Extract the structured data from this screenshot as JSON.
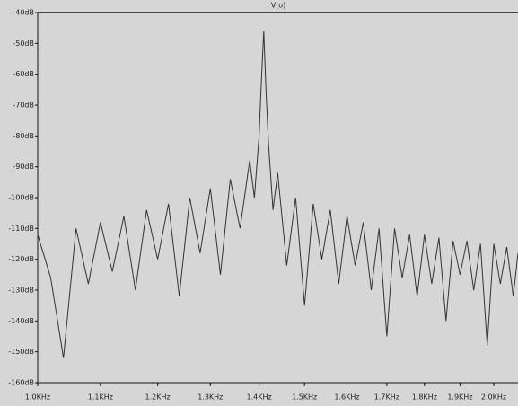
{
  "chart_data": {
    "type": "line",
    "title": "V(o)",
    "x": [
      1000,
      1020,
      1040,
      1060,
      1080,
      1100,
      1120,
      1140,
      1160,
      1180,
      1200,
      1220,
      1240,
      1260,
      1280,
      1300,
      1320,
      1340,
      1360,
      1380,
      1390,
      1400,
      1405,
      1410,
      1415,
      1420,
      1430,
      1440,
      1460,
      1480,
      1500,
      1520,
      1540,
      1560,
      1580,
      1600,
      1620,
      1640,
      1660,
      1680,
      1700,
      1720,
      1740,
      1760,
      1780,
      1800,
      1820,
      1840,
      1860,
      1880,
      1900,
      1920,
      1940,
      1960,
      1980,
      2000,
      2020,
      2040,
      2060,
      2075
    ],
    "series": [
      {
        "name": "V(o)",
        "color": "#333333",
        "values": [
          -112,
          -126,
          -152,
          -110,
          -128,
          -108,
          -124,
          -106,
          -130,
          -104,
          -120,
          -102,
          -132,
          -100,
          -118,
          -97,
          -125,
          -94,
          -110,
          -88,
          -100,
          -80,
          -62,
          -46,
          -66,
          -82,
          -104,
          -92,
          -122,
          -100,
          -135,
          -102,
          -120,
          -104,
          -128,
          -106,
          -122,
          -108,
          -130,
          -110,
          -145,
          -110,
          -126,
          -112,
          -132,
          -112,
          -128,
          -113,
          -140,
          -114,
          -125,
          -114,
          -130,
          -115,
          -148,
          -115,
          -128,
          -116,
          -132,
          -118
        ]
      }
    ],
    "xlim": [
      1000,
      2075
    ],
    "xscale": "log",
    "xticks": [
      {
        "value": 1000,
        "label": "1.0KHz"
      },
      {
        "value": 1100,
        "label": "1.1KHz"
      },
      {
        "value": 1200,
        "label": "1.2KHz"
      },
      {
        "value": 1300,
        "label": "1.3KHz"
      },
      {
        "value": 1400,
        "label": "1.4KHz"
      },
      {
        "value": 1500,
        "label": "1.5KHz"
      },
      {
        "value": 1600,
        "label": "1.6KHz"
      },
      {
        "value": 1700,
        "label": "1.7KHz"
      },
      {
        "value": 1800,
        "label": "1.8KHz"
      },
      {
        "value": 1900,
        "label": "1.9KHz"
      },
      {
        "value": 2000,
        "label": "2.0KHz"
      }
    ],
    "ylim": [
      -160,
      -40
    ],
    "yticks": [
      {
        "value": -40,
        "label": "-40dB"
      },
      {
        "value": -50,
        "label": "-50dB"
      },
      {
        "value": -60,
        "label": "-60dB"
      },
      {
        "value": -70,
        "label": "-70dB"
      },
      {
        "value": -80,
        "label": "-80dB"
      },
      {
        "value": -90,
        "label": "-90dB"
      },
      {
        "value": -100,
        "label": "-100dB"
      },
      {
        "value": -110,
        "label": "-110dB"
      },
      {
        "value": -120,
        "label": "-120dB"
      },
      {
        "value": -130,
        "label": "-130dB"
      },
      {
        "value": -140,
        "label": "-140dB"
      },
      {
        "value": -150,
        "label": "-150dB"
      },
      {
        "value": -160,
        "label": "-160dB"
      }
    ]
  }
}
